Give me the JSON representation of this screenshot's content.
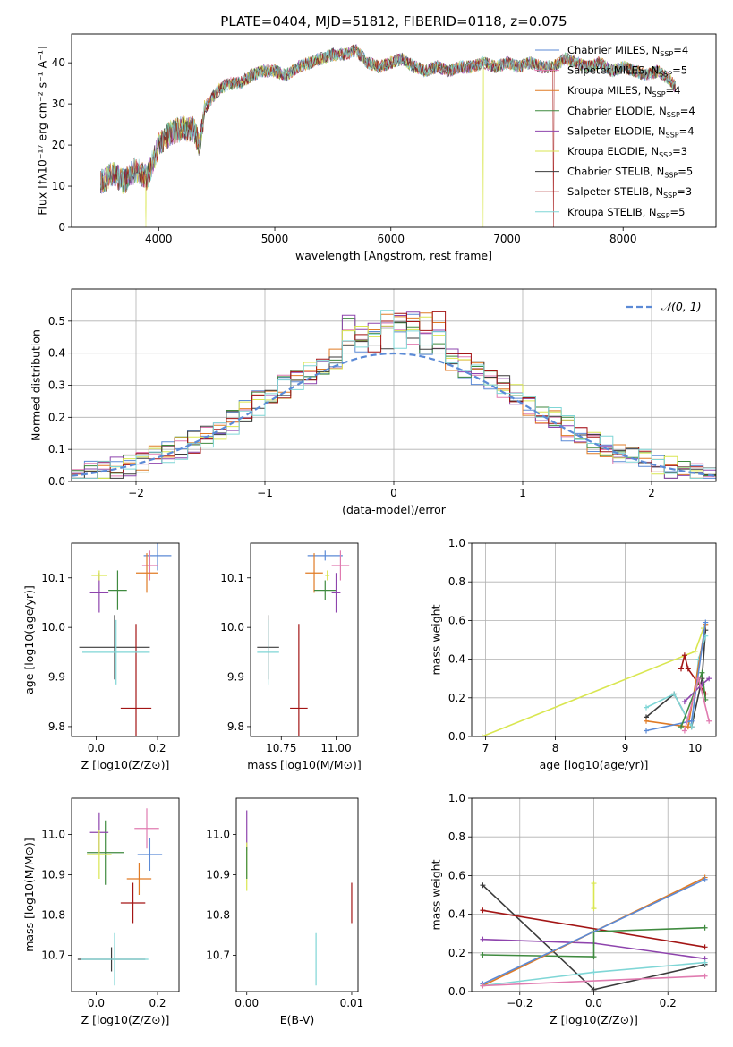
{
  "title": "PLATE=0404, MJD=51812, FIBERID=0118, z=0.075",
  "colors": {
    "chabrier_miles": "#5b8ad6",
    "salpeter_miles": "#e07bb0",
    "kroupa_miles": "#e07b25",
    "chabrier_elodie": "#3f8a3f",
    "salpeter_elodie": "#8e44ad",
    "kroupa_elodie": "#d9e650",
    "chabrier_stelib": "#3b3b3b",
    "salpeter_stelib": "#a31515",
    "kroupa_stelib": "#7fd6d6",
    "gaussian": "#5b8ad6",
    "grid": "#b0b0b0"
  },
  "chart_data": [
    {
      "id": "spectrum",
      "type": "line",
      "xlabel": "wavelength [Angstrom, rest frame]",
      "ylabel": "Flux [fλ10⁻¹⁷ erg cm⁻² s⁻¹ A⁻¹]",
      "xlim": [
        3250,
        8800
      ],
      "ylim": [
        0,
        47
      ],
      "xticks": [
        4000,
        5000,
        6000,
        7000,
        8000
      ],
      "yticks": [
        0,
        10,
        20,
        30,
        40
      ],
      "grid": false,
      "legend_position": "top-right",
      "envelope": {
        "x": [
          3500,
          3600,
          3700,
          3800,
          3900,
          4000,
          4100,
          4200,
          4300,
          4350,
          4400,
          4500,
          4600,
          4700,
          4800,
          4900,
          5000,
          5100,
          5200,
          5300,
          5400,
          5500,
          5600,
          5700,
          5800,
          5900,
          6000,
          6100,
          6200,
          6300,
          6400,
          6500,
          6600,
          6700,
          6800,
          6900,
          7000,
          7100,
          7200,
          7300,
          7400,
          7500,
          7600,
          7700,
          7800,
          7900,
          8000,
          8100,
          8200,
          8300,
          8400,
          8450
        ],
        "y": [
          11,
          13,
          11,
          14,
          12,
          20,
          23,
          24,
          24,
          20,
          29,
          33,
          35,
          35,
          37,
          38,
          38,
          37,
          39,
          40,
          41,
          42,
          42,
          43,
          40,
          39,
          40,
          41,
          39,
          38,
          39,
          38,
          39,
          39,
          40,
          39,
          40,
          39,
          40,
          39,
          39,
          41,
          40,
          39,
          40,
          38,
          39,
          38,
          37,
          38,
          36,
          34
        ]
      },
      "series": [
        {
          "name": "Chabrier MILES, N_SSP=4",
          "color_key": "chabrier_miles"
        },
        {
          "name": "Salpeter MILES, N_SSP=5",
          "color_key": "salpeter_miles"
        },
        {
          "name": "Kroupa MILES, N_SSP=4",
          "color_key": "kroupa_miles"
        },
        {
          "name": "Chabrier ELODIE, N_SSP=4",
          "color_key": "chabrier_elodie"
        },
        {
          "name": "Salpeter ELODIE, N_SSP=4",
          "color_key": "salpeter_elodie"
        },
        {
          "name": "Kroupa ELODIE, N_SSP=3",
          "color_key": "kroupa_elodie"
        },
        {
          "name": "Chabrier STELIB, N_SSP=5",
          "color_key": "chabrier_stelib"
        },
        {
          "name": "Salpeter STELIB, N_SSP=3",
          "color_key": "salpeter_stelib"
        },
        {
          "name": "Kroupa STELIB, N_SSP=5",
          "color_key": "kroupa_stelib"
        }
      ]
    },
    {
      "id": "residuals",
      "type": "histogram",
      "xlabel": "(data-model)/error",
      "ylabel": "Normed distribution",
      "xlim": [
        -2.5,
        2.5
      ],
      "ylim": [
        0,
        0.6
      ],
      "xticks": [
        -2,
        -1,
        0,
        1,
        2
      ],
      "yticks": [
        0.0,
        0.1,
        0.2,
        0.3,
        0.4,
        0.5
      ],
      "grid": true,
      "legend_position": "top-right",
      "legend_label": "𝒩(0, 1)",
      "gaussian": {
        "mu": 0,
        "sigma": 1
      },
      "bin_width": 0.1,
      "peak_height": 0.55
    },
    {
      "id": "age_vs_z",
      "type": "errorbar",
      "xlabel": "Z [log10(Z/Z⊙)]",
      "ylabel": "age  [log10(age/yr)]",
      "xlim": [
        -0.08,
        0.27
      ],
      "ylim": [
        9.78,
        10.17
      ],
      "xticks": [
        0.0,
        0.2
      ],
      "yticks": [
        9.8,
        9.9,
        10.0,
        10.1
      ],
      "points": [
        {
          "color_key": "chabrier_miles",
          "x": 0.2,
          "y": 10.145,
          "xe": 0.045,
          "ye": 0.03
        },
        {
          "color_key": "salpeter_miles",
          "x": 0.175,
          "y": 10.125,
          "xe": 0.025,
          "ye": 0.03
        },
        {
          "color_key": "kroupa_miles",
          "x": 0.165,
          "y": 10.11,
          "xe": 0.035,
          "ye": 0.04
        },
        {
          "color_key": "chabrier_elodie",
          "x": 0.07,
          "y": 10.075,
          "xe": 0.03,
          "ye": 0.04
        },
        {
          "color_key": "salpeter_elodie",
          "x": 0.01,
          "y": 10.07,
          "xe": 0.03,
          "ye": 0.04
        },
        {
          "color_key": "kroupa_elodie",
          "x": 0.01,
          "y": 10.105,
          "xe": 0.025,
          "ye": 0.01
        },
        {
          "color_key": "chabrier_stelib",
          "x": 0.06,
          "y": 9.96,
          "xe": 0.115,
          "ye": 0.065
        },
        {
          "color_key": "salpeter_stelib",
          "x": 0.13,
          "y": 9.837,
          "xe": 0.05,
          "ye": 0.17
        },
        {
          "color_key": "kroupa_stelib",
          "x": 0.065,
          "y": 9.95,
          "xe": 0.11,
          "ye": 0.065
        }
      ]
    },
    {
      "id": "age_vs_mass",
      "type": "errorbar",
      "xlabel": "mass [log10(M/M⊙)]",
      "ylabel": "",
      "xlim": [
        10.61,
        11.1
      ],
      "ylim": [
        9.78,
        10.17
      ],
      "xticks": [
        10.75,
        11.0
      ],
      "yticks": [
        9.8,
        9.9,
        10.0,
        10.1
      ],
      "points": [
        {
          "color_key": "chabrier_miles",
          "x": 10.95,
          "y": 10.145,
          "xe": 0.08,
          "ye": 0.01
        },
        {
          "color_key": "salpeter_miles",
          "x": 11.02,
          "y": 10.125,
          "xe": 0.04,
          "ye": 0.03
        },
        {
          "color_key": "kroupa_miles",
          "x": 10.9,
          "y": 10.11,
          "xe": 0.04,
          "ye": 0.04
        },
        {
          "color_key": "chabrier_elodie",
          "x": 10.95,
          "y": 10.075,
          "xe": 0.05,
          "ye": 0.02
        },
        {
          "color_key": "salpeter_elodie",
          "x": 11.0,
          "y": 10.07,
          "xe": 0.02,
          "ye": 0.04
        },
        {
          "color_key": "kroupa_elodie",
          "x": 10.96,
          "y": 10.105,
          "xe": 0.01,
          "ye": 0.01
        },
        {
          "color_key": "chabrier_stelib",
          "x": 10.69,
          "y": 9.96,
          "xe": 0.05,
          "ye": 0.065
        },
        {
          "color_key": "salpeter_stelib",
          "x": 10.83,
          "y": 9.837,
          "xe": 0.04,
          "ye": 0.17
        },
        {
          "color_key": "kroupa_stelib",
          "x": 10.69,
          "y": 9.95,
          "xe": 0.05,
          "ye": 0.065
        }
      ]
    },
    {
      "id": "weight_vs_age",
      "type": "line",
      "xlabel": "age  [log10(age/yr)]",
      "ylabel": "mass weight",
      "xlim": [
        6.8,
        10.3
      ],
      "ylim": [
        0,
        1.0
      ],
      "xticks": [
        7,
        8,
        9,
        10
      ],
      "yticks": [
        0.0,
        0.2,
        0.4,
        0.6,
        0.8,
        1.0
      ],
      "grid": true,
      "series": [
        {
          "color_key": "kroupa_elodie",
          "x": [
            6.95,
            10.0,
            10.12
          ],
          "y": [
            0.0,
            0.44,
            0.56
          ]
        },
        {
          "color_key": "chabrier_stelib",
          "x": [
            9.3,
            9.7,
            9.95,
            10.1,
            10.15
          ],
          "y": [
            0.1,
            0.22,
            0.05,
            0.3,
            0.55
          ]
        },
        {
          "color_key": "kroupa_stelib",
          "x": [
            9.3,
            9.7,
            9.95,
            10.05,
            10.15
          ],
          "y": [
            0.15,
            0.22,
            0.05,
            0.4,
            0.52
          ]
        },
        {
          "color_key": "salpeter_stelib",
          "x": [
            9.8,
            9.85,
            9.9,
            10.15
          ],
          "y": [
            0.35,
            0.42,
            0.35,
            0.22
          ]
        },
        {
          "color_key": "kroupa_miles",
          "x": [
            9.3,
            9.9,
            10.15
          ],
          "y": [
            0.08,
            0.05,
            0.58
          ]
        },
        {
          "color_key": "chabrier_miles",
          "x": [
            9.3,
            9.95,
            10.15
          ],
          "y": [
            0.03,
            0.08,
            0.59
          ]
        },
        {
          "color_key": "salpeter_elodie",
          "x": [
            9.85,
            10.1,
            10.2
          ],
          "y": [
            0.18,
            0.27,
            0.3
          ]
        },
        {
          "color_key": "chabrier_elodie",
          "x": [
            9.8,
            10.1,
            10.15
          ],
          "y": [
            0.05,
            0.33,
            0.19
          ]
        },
        {
          "color_key": "salpeter_miles",
          "x": [
            9.85,
            10.05,
            10.2
          ],
          "y": [
            0.03,
            0.3,
            0.08
          ]
        }
      ]
    },
    {
      "id": "mass_vs_z",
      "type": "errorbar",
      "xlabel": "Z [log10(Z/Z⊙)]",
      "ylabel": "mass [log10(M/M⊙)]",
      "xlim": [
        -0.08,
        0.27
      ],
      "ylim": [
        10.61,
        11.09
      ],
      "xticks": [
        0.0,
        0.2
      ],
      "yticks": [
        10.7,
        10.8,
        10.9,
        11.0
      ],
      "points": [
        {
          "color_key": "chabrier_miles",
          "x": 0.175,
          "y": 10.95,
          "xe": 0.04,
          "ye": 0.04
        },
        {
          "color_key": "salpeter_miles",
          "x": 0.165,
          "y": 11.015,
          "xe": 0.04,
          "ye": 0.05
        },
        {
          "color_key": "kroupa_miles",
          "x": 0.14,
          "y": 10.89,
          "xe": 0.04,
          "ye": 0.04
        },
        {
          "color_key": "chabrier_elodie",
          "x": 0.03,
          "y": 10.955,
          "xe": 0.06,
          "ye": 0.08
        },
        {
          "color_key": "salpeter_elodie",
          "x": 0.01,
          "y": 11.005,
          "xe": 0.03,
          "ye": 0.05
        },
        {
          "color_key": "kroupa_elodie",
          "x": 0.01,
          "y": 10.95,
          "xe": 0.04,
          "ye": 0.06
        },
        {
          "color_key": "chabrier_stelib",
          "x": 0.05,
          "y": 10.69,
          "xe": 0.11,
          "ye": 0.03
        },
        {
          "color_key": "salpeter_stelib",
          "x": 0.12,
          "y": 10.83,
          "xe": 0.04,
          "ye": 0.05
        },
        {
          "color_key": "kroupa_stelib",
          "x": 0.06,
          "y": 10.69,
          "xe": 0.11,
          "ye": 0.065
        }
      ]
    },
    {
      "id": "mass_vs_ebv",
      "type": "errorbar",
      "xlabel": "E(B-V)",
      "ylabel": "",
      "xlim": [
        -0.001,
        0.0106
      ],
      "ylim": [
        10.61,
        11.09
      ],
      "xticks": [
        0.0,
        0.01
      ],
      "yticks": [
        10.7,
        10.8,
        10.9,
        11.0
      ],
      "points": [
        {
          "color_key": "salpeter_elodie",
          "x": 0.0,
          "y": 11.01,
          "xe": 0,
          "ye": 0.05
        },
        {
          "color_key": "kroupa_elodie",
          "x": 0.0,
          "y": 10.92,
          "xe": 0,
          "ye": 0.06
        },
        {
          "color_key": "chabrier_elodie",
          "x": 0.0,
          "y": 10.93,
          "xe": 0,
          "ye": 0.04
        },
        {
          "color_key": "salpeter_stelib",
          "x": 0.01,
          "y": 10.83,
          "xe": 0,
          "ye": 0.05
        },
        {
          "color_key": "kroupa_stelib",
          "x": 0.0066,
          "y": 10.69,
          "xe": 0,
          "ye": 0.065
        }
      ]
    },
    {
      "id": "weight_vs_z",
      "type": "line",
      "xlabel": "Z [log10(Z/Z⊙)]",
      "ylabel": "mass weight",
      "xlim": [
        -0.33,
        0.33
      ],
      "ylim": [
        0,
        1.0
      ],
      "xticks": [
        -0.2,
        0.0,
        0.2
      ],
      "yticks": [
        0.0,
        0.2,
        0.4,
        0.6,
        0.8,
        1.0
      ],
      "grid": true,
      "series": [
        {
          "color_key": "chabrier_stelib",
          "x": [
            -0.3,
            0.0,
            0.3
          ],
          "y": [
            0.55,
            0.01,
            0.14
          ]
        },
        {
          "color_key": "salpeter_stelib",
          "x": [
            -0.3,
            0.3
          ],
          "y": [
            0.42,
            0.23
          ]
        },
        {
          "color_key": "salpeter_elodie",
          "x": [
            -0.3,
            0.0,
            0.3
          ],
          "y": [
            0.27,
            0.25,
            0.17
          ]
        },
        {
          "color_key": "chabrier_elodie",
          "x": [
            -0.3,
            0.0,
            0.0,
            0.3
          ],
          "y": [
            0.19,
            0.18,
            0.31,
            0.33
          ]
        },
        {
          "color_key": "kroupa_miles",
          "x": [
            -0.3,
            0.3
          ],
          "y": [
            0.03,
            0.59
          ]
        },
        {
          "color_key": "chabrier_miles",
          "x": [
            -0.3,
            0.3
          ],
          "y": [
            0.04,
            0.58
          ]
        },
        {
          "color_key": "kroupa_stelib",
          "x": [
            -0.3,
            0.0,
            0.3
          ],
          "y": [
            0.03,
            0.1,
            0.15
          ]
        },
        {
          "color_key": "salpeter_miles",
          "x": [
            -0.3,
            0.3
          ],
          "y": [
            0.03,
            0.08
          ]
        },
        {
          "color_key": "kroupa_elodie",
          "x": [
            0.0,
            0.0
          ],
          "y": [
            0.43,
            0.56
          ]
        }
      ]
    }
  ]
}
